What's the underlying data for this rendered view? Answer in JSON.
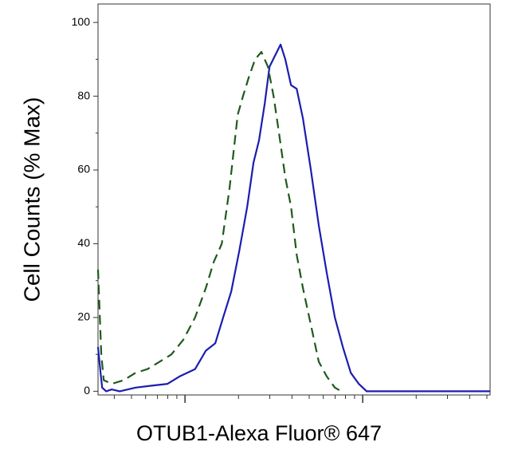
{
  "chart_data": {
    "type": "line",
    "ylabel": "Cell Counts (% Max)",
    "xlabel": "OTUB1-Alexa Fluor® 647",
    "xscale": "log",
    "xlim": [
      32.4,
      5212
    ],
    "xticks": [
      100,
      1000
    ],
    "xminor_ticks": [
      40,
      50,
      60,
      70,
      80,
      90,
      200,
      300,
      400,
      500,
      600,
      700,
      800,
      900,
      2000,
      3000,
      4000,
      5000
    ],
    "ylim": [
      -1,
      105
    ],
    "yticks": [
      0,
      20,
      40,
      60,
      80,
      100
    ],
    "yminor_ticks": [
      10,
      30,
      50,
      70,
      90
    ],
    "series": [
      {
        "color": "#1c1cb0",
        "dash": false,
        "x": [
          32.4,
          33.5,
          34.2,
          36.0,
          38.7,
          42.9,
          52.7,
          64.8,
          79.7,
          93.0,
          114,
          131,
          148,
          164,
          182,
          202,
          224,
          243,
          261,
          281,
          299,
          321,
          345,
          367,
          395,
          425,
          461,
          511,
          566,
          628,
          697,
          773,
          857,
          950,
          1053,
          1592,
          5212
        ],
        "values": [
          12,
          5,
          1,
          0,
          0.5,
          0,
          1,
          1.5,
          2,
          4,
          6,
          11,
          13,
          20,
          27,
          38,
          50,
          62,
          68,
          78,
          88,
          91,
          94,
          90,
          83,
          82,
          74,
          60,
          45,
          32,
          20,
          12,
          5,
          2,
          0,
          0,
          0
        ]
      },
      {
        "color": "#1e5a1e",
        "dash": true,
        "x": [
          32.4,
          33.8,
          34.9,
          38.7,
          45.2,
          52.7,
          61.5,
          71.9,
          83.9,
          97.9,
          114,
          131,
          145,
          161,
          178,
          198,
          212,
          228,
          248,
          269,
          293,
          315,
          338,
          367,
          395,
          425,
          461,
          511,
          566,
          628,
          697,
          757
        ],
        "values": [
          33,
          10,
          3,
          2,
          3,
          5,
          6,
          8,
          10,
          14,
          20,
          28,
          35,
          40,
          55,
          75,
          80,
          85,
          90,
          92,
          88,
          80,
          70,
          58,
          50,
          37,
          28,
          18,
          8,
          4,
          1,
          0
        ]
      }
    ]
  }
}
